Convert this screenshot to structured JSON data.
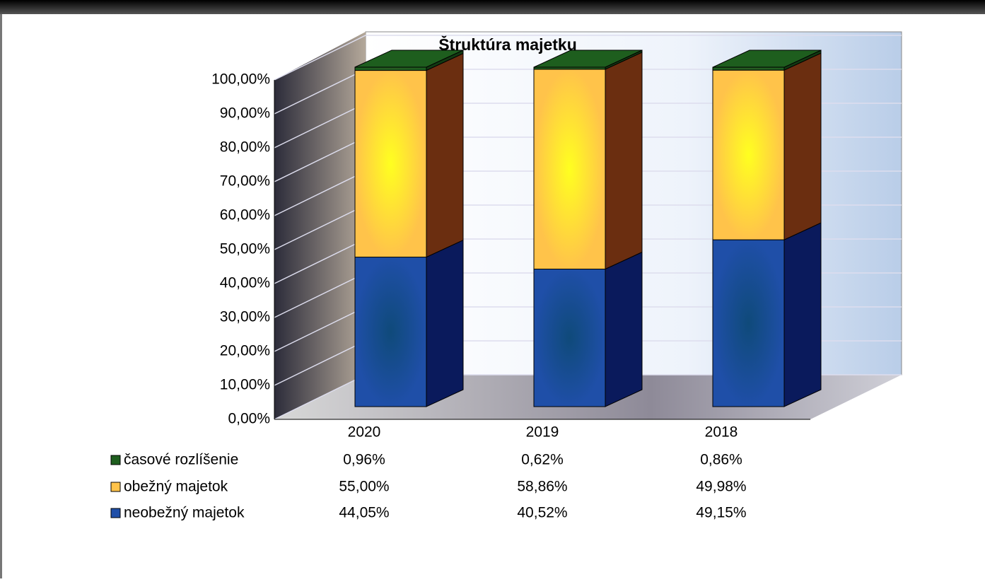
{
  "chart_data": {
    "type": "bar3d_stacked",
    "title": "Štruktúra majetku",
    "categories": [
      "2020",
      "2019",
      "2018"
    ],
    "series": [
      {
        "name": "časové rozlíšenie",
        "color": "#1e5e1e",
        "values": [
          0.96,
          0.62,
          0.86
        ],
        "value_labels": [
          "0,96%",
          "0,62%",
          "0,86%"
        ]
      },
      {
        "name": "obežný majetok",
        "color": "#ffc34a",
        "values": [
          55.0,
          58.86,
          49.98
        ],
        "value_labels": [
          "55,00%",
          "58,86%",
          "49,98%"
        ]
      },
      {
        "name": "neobežný majetok",
        "color": "#1f4fa8",
        "values": [
          44.05,
          40.52,
          49.15
        ],
        "value_labels": [
          "44,05%",
          "40,52%",
          "49,15%"
        ]
      }
    ],
    "ylim": [
      0,
      100
    ],
    "yticks": [
      {
        "value": 0,
        "label": "0,00%"
      },
      {
        "value": 10,
        "label": "10,00%"
      },
      {
        "value": 20,
        "label": "20,00%"
      },
      {
        "value": 30,
        "label": "30,00%"
      },
      {
        "value": 40,
        "label": "40,00%"
      },
      {
        "value": 50,
        "label": "50,00%"
      },
      {
        "value": 60,
        "label": "60,00%"
      },
      {
        "value": 70,
        "label": "70,00%"
      },
      {
        "value": 80,
        "label": "80,00%"
      },
      {
        "value": 90,
        "label": "90,00%"
      },
      {
        "value": 100,
        "label": "100,00%"
      }
    ],
    "grid": true
  }
}
